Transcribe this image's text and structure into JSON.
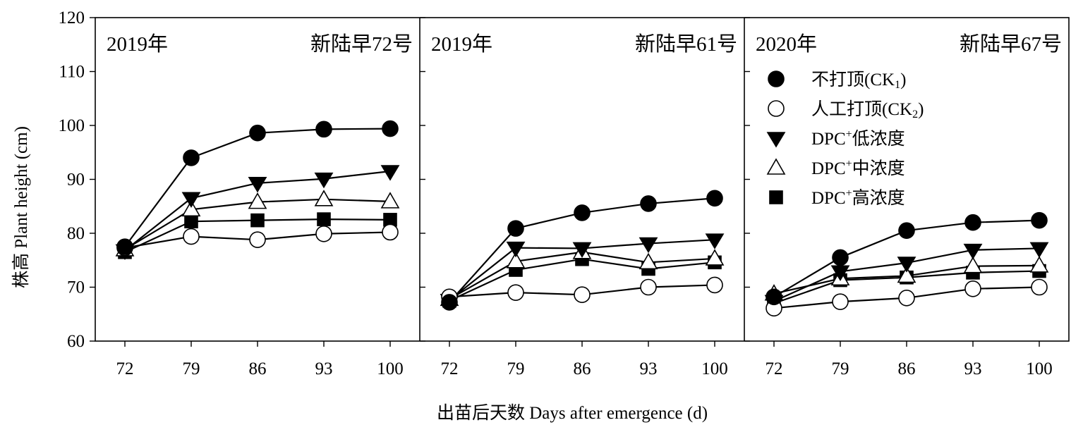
{
  "chart_data": {
    "type": "line",
    "ylabel": "株高 Plant height (cm)",
    "xlabel": "出苗后天数  Days after emergence (d)",
    "x": [
      72,
      79,
      86,
      93,
      100
    ],
    "xticks": [
      "72",
      "79",
      "86",
      "93",
      "100"
    ],
    "yticks": [
      "60",
      "70",
      "80",
      "90",
      "100",
      "110",
      "120"
    ],
    "ylim": [
      60,
      120
    ],
    "legend_position": "top-right of third panel",
    "legend": [
      {
        "label_main": "不打顶(CK",
        "label_sub": "1",
        "label_end": ")",
        "marker": "circle-filled"
      },
      {
        "label_main": "人工打顶(CK",
        "label_sub": "2",
        "label_end": ")",
        "marker": "circle-open"
      },
      {
        "label_main": "DPC",
        "label_sup": "+",
        "label_end": "低浓度",
        "marker": "triangle-down-filled"
      },
      {
        "label_main": "DPC",
        "label_sup": "+",
        "label_end": "中浓度",
        "marker": "triangle-up-open"
      },
      {
        "label_main": "DPC",
        "label_sup": "+",
        "label_end": "高浓度",
        "marker": "square-filled"
      }
    ],
    "panels": [
      {
        "year": "2019年",
        "cultivar": "新陆早72号",
        "series": [
          {
            "name": "不打顶(CK1)",
            "values": [
              77.5,
              94.0,
              98.6,
              99.3,
              99.4
            ]
          },
          {
            "name": "人工打顶(CK2)",
            "values": [
              77.3,
              79.4,
              78.8,
              79.9,
              80.2
            ]
          },
          {
            "name": "DPC+低浓度",
            "values": [
              76.8,
              86.5,
              89.3,
              90.1,
              91.5
            ]
          },
          {
            "name": "DPC+中浓度",
            "values": [
              77.0,
              84.4,
              85.8,
              86.3,
              85.9
            ]
          },
          {
            "name": "DPC+高浓度",
            "values": [
              76.5,
              82.2,
              82.4,
              82.6,
              82.5
            ]
          }
        ]
      },
      {
        "year": "2019年",
        "cultivar": "新陆早61号",
        "series": [
          {
            "name": "不打顶(CK1)",
            "values": [
              67.2,
              80.9,
              83.8,
              85.5,
              86.5
            ]
          },
          {
            "name": "人工打顶(CK2)",
            "values": [
              68.2,
              69.0,
              68.6,
              70.0,
              70.4
            ]
          },
          {
            "name": "DPC+低浓度",
            "values": [
              67.6,
              77.3,
              77.2,
              78.1,
              78.8
            ]
          },
          {
            "name": "DPC+中浓度",
            "values": [
              67.8,
              74.8,
              76.5,
              74.6,
              75.3
            ]
          },
          {
            "name": "DPC+高浓度",
            "values": [
              67.5,
              73.2,
              75.2,
              73.4,
              74.6
            ]
          }
        ]
      },
      {
        "year": "2020年",
        "cultivar": "新陆早67号",
        "series": [
          {
            "name": "不打顶(CK1)",
            "values": [
              68.2,
              75.5,
              80.5,
              82.0,
              82.4
            ]
          },
          {
            "name": "人工打顶(CK2)",
            "values": [
              66.1,
              67.3,
              68.0,
              69.7,
              70.0
            ]
          },
          {
            "name": "DPC+低浓度",
            "values": [
              67.4,
              72.9,
              74.5,
              76.9,
              77.2
            ]
          },
          {
            "name": "DPC+中浓度",
            "values": [
              68.8,
              71.6,
              72.1,
              73.9,
              74.0
            ]
          },
          {
            "name": "DPC+高浓度",
            "values": [
              67.0,
              71.3,
              71.8,
              72.7,
              73.0
            ]
          }
        ]
      }
    ]
  }
}
